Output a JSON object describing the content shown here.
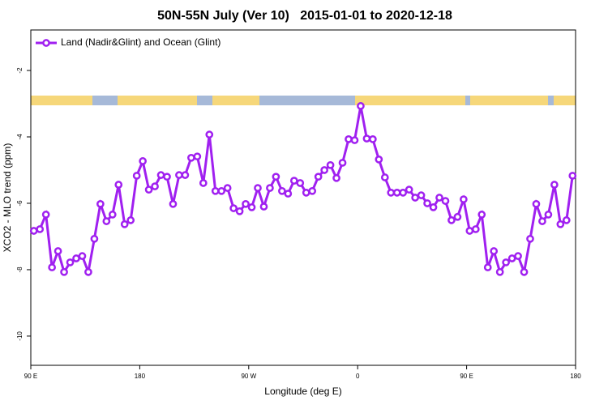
{
  "chart_data": {
    "type": "line",
    "title": "50N-55N July (Ver 10)   2015-01-01 to 2020-12-18",
    "x_label": "Longitude (deg E)",
    "y_label": "XCO2 - MLO trend (ppm)",
    "xlim": [
      90,
      540
    ],
    "ylim": [
      -10.88,
      -0.78
    ],
    "xticks": [
      {
        "value": 90,
        "label": "90 E"
      },
      180,
      {
        "value": 270,
        "label": "90 W"
      },
      {
        "value": 360,
        "label": "0"
      },
      {
        "value": 450,
        "label": "90 E"
      },
      {
        "value": 540,
        "label": "180"
      }
    ],
    "yticks": [
      -10,
      -8,
      -6,
      -4,
      -2
    ],
    "legend": "top-left",
    "x": [
      92.5,
      97.5,
      102.5,
      107.5,
      112.5,
      117.5,
      122.5,
      127.5,
      132.5,
      137.5,
      142.5,
      147.5,
      152.5,
      157.5,
      162.5,
      167.5,
      172.5,
      177.5,
      182.5,
      187.5,
      192.5,
      197.5,
      202.5,
      207.5,
      212.5,
      217.5,
      222.5,
      227.5,
      232.5,
      237.5,
      242.5,
      247.5,
      252.5,
      257.5,
      262.5,
      267.5,
      272.5,
      277.5,
      282.5,
      287.5,
      292.5,
      297.5,
      302.5,
      307.5,
      312.5,
      317.5,
      322.5,
      327.5,
      332.5,
      337.5,
      342.5,
      347.5,
      352.5,
      357.5,
      362.5,
      367.5,
      372.5,
      377.5,
      382.5,
      387.5,
      392.5,
      397.5,
      402.5,
      407.5,
      412.5,
      417.5,
      422.5,
      427.5,
      432.5,
      437.5,
      442.5,
      447.5,
      452.5,
      457.5,
      462.5,
      467.5,
      472.5,
      477.5,
      482.5,
      487.5,
      492.5,
      497.5,
      502.5,
      507.5,
      512.5,
      517.5,
      522.5,
      527.5,
      532.5,
      537.5
    ],
    "series": [
      {
        "name": "Land (Nadir&Glint) and Ocean (Glint)",
        "color": "#a020f0",
        "values": [
          -6.83,
          -6.78,
          -6.34,
          -7.93,
          -7.44,
          -8.07,
          -7.78,
          -7.66,
          -7.59,
          -8.07,
          -7.07,
          -6.02,
          -6.54,
          -6.34,
          -5.44,
          -6.63,
          -6.51,
          -5.17,
          -4.73,
          -5.59,
          -5.49,
          -5.15,
          -5.2,
          -6.02,
          -5.15,
          -5.15,
          -4.63,
          -4.59,
          -5.39,
          -3.93,
          -5.63,
          -5.63,
          -5.54,
          -6.15,
          -6.24,
          -6.02,
          -6.12,
          -5.54,
          -6.1,
          -5.54,
          -5.2,
          -5.63,
          -5.71,
          -5.32,
          -5.39,
          -5.68,
          -5.63,
          -5.2,
          -5.0,
          -4.85,
          -5.24,
          -4.78,
          -4.07,
          -4.1,
          -3.07,
          -4.05,
          -4.07,
          -4.68,
          -5.22,
          -5.68,
          -5.68,
          -5.68,
          -5.59,
          -5.83,
          -5.76,
          -6.0,
          -6.12,
          -5.83,
          -5.93,
          -6.51,
          -6.41,
          -5.88,
          -6.83,
          -6.78,
          -6.34,
          -7.93,
          -7.44,
          -8.07,
          -7.78,
          -7.66,
          -7.59,
          -8.07,
          -7.07,
          -6.02,
          -6.54,
          -6.34,
          -5.44,
          -6.63,
          -6.51,
          -5.17
        ]
      }
    ]
  }
}
